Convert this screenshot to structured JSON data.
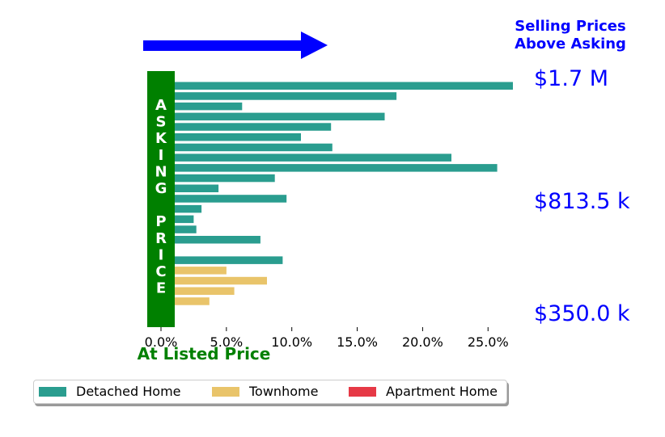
{
  "chart_data": {
    "type": "bar",
    "orientation": "horizontal",
    "xlabel": "At Listed Price",
    "ylabel": "ASKING PRICE",
    "header": [
      "Selling Prices",
      "Above Asking"
    ],
    "xlim": [
      -0.01,
      0.27
    ],
    "xticks": [
      0.0,
      0.05,
      0.1,
      0.15,
      0.2,
      0.25
    ],
    "xtick_labels": [
      "0.0%",
      "5.0%",
      "10.0%",
      "15.0%",
      "20.0%",
      "25.0%"
    ],
    "price_labels": [
      "$1.7 M",
      "$813.5 k",
      "$350.0 k"
    ],
    "values": [
      0.269,
      0.18,
      0.062,
      0.171,
      0.13,
      0.107,
      0.131,
      0.222,
      0.257,
      0.087,
      0.044,
      0.096,
      0.031,
      0.025,
      0.027,
      0.076,
      0.001,
      0.093,
      0.05,
      0.081,
      0.056,
      0.037,
      0.001
    ],
    "types": [
      "Detached Home",
      "Detached Home",
      "Detached Home",
      "Detached Home",
      "Detached Home",
      "Detached Home",
      "Detached Home",
      "Detached Home",
      "Detached Home",
      "Detached Home",
      "Detached Home",
      "Detached Home",
      "Detached Home",
      "Detached Home",
      "Detached Home",
      "Detached Home",
      "Townhome",
      "Detached Home",
      "Townhome",
      "Townhome",
      "Townhome",
      "Townhome",
      "Apartment Home"
    ],
    "legend": [
      {
        "name": "Detached Home",
        "color": "#2a9d8f"
      },
      {
        "name": "Townhome",
        "color": "#e9c46a"
      },
      {
        "name": "Apartment Home",
        "color": "#e63946"
      }
    ],
    "legend_position": "bottom",
    "grid": false
  },
  "colors": {
    "asking_bar": "#008000",
    "arrow": "#0000ff",
    "header_text": "#0000ff",
    "xlabel_text": "#008000"
  }
}
